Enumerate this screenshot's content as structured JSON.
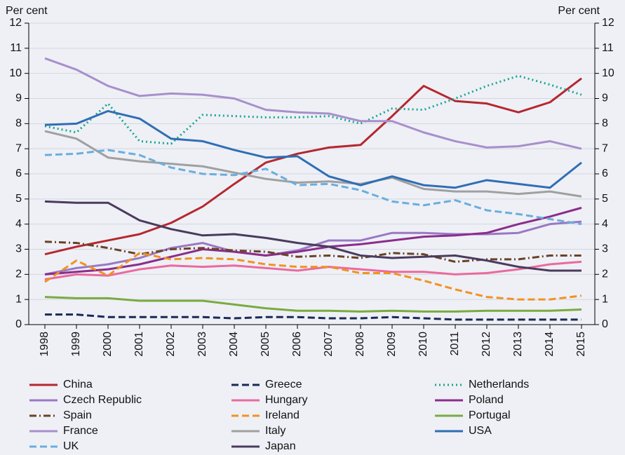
{
  "chart_data": {
    "type": "line",
    "y_label": "Per cent",
    "y2_label": "Per cent",
    "categories": [
      "1998",
      "1999",
      "2000",
      "2001",
      "2002",
      "2003",
      "2004",
      "2005",
      "2006",
      "2007",
      "2008",
      "2009",
      "2010",
      "2011",
      "2012",
      "2013",
      "2014",
      "2015"
    ],
    "ylim": [
      0,
      12
    ],
    "yticks": [
      0,
      1,
      2,
      3,
      4,
      5,
      6,
      7,
      8,
      9,
      10,
      11,
      12
    ],
    "y2lim": [
      0,
      12
    ],
    "y2ticks": [
      0,
      1,
      2,
      3,
      4,
      5,
      6,
      7,
      8,
      9,
      10,
      11,
      12
    ],
    "grid": true,
    "series": [
      {
        "name": "China",
        "color": "#b5282e",
        "style": "solid",
        "values": [
          2.8,
          3.1,
          3.35,
          3.6,
          4.05,
          4.7,
          5.6,
          6.45,
          6.8,
          7.05,
          7.15,
          8.3,
          9.5,
          8.9,
          8.8,
          8.45,
          8.85,
          9.8
        ]
      },
      {
        "name": "Greece",
        "color": "#1b2a55",
        "style": "dashed",
        "values": [
          0.4,
          0.4,
          0.3,
          0.3,
          0.3,
          0.3,
          0.25,
          0.3,
          0.3,
          0.25,
          0.25,
          0.3,
          0.25,
          0.2,
          0.2,
          0.2,
          0.2,
          0.2
        ]
      },
      {
        "name": "Netherlands",
        "color": "#1aa68e",
        "style": "dotted",
        "values": [
          7.9,
          7.65,
          8.8,
          7.3,
          7.2,
          8.35,
          8.3,
          8.25,
          8.25,
          8.3,
          8.0,
          8.6,
          8.55,
          9.0,
          9.5,
          9.9,
          9.55,
          9.15
        ]
      },
      {
        "name": "Czech Republic",
        "color": "#9a78c4",
        "style": "solid",
        "values": [
          2.0,
          2.25,
          2.4,
          2.65,
          3.05,
          3.25,
          2.9,
          2.75,
          2.95,
          3.35,
          3.35,
          3.65,
          3.65,
          3.6,
          3.6,
          3.65,
          4.0,
          4.1
        ]
      },
      {
        "name": "Hungary",
        "color": "#ea6a9e",
        "style": "solid",
        "values": [
          1.8,
          2.0,
          1.95,
          2.2,
          2.35,
          2.3,
          2.35,
          2.25,
          2.15,
          2.3,
          2.2,
          2.1,
          2.1,
          2.0,
          2.05,
          2.2,
          2.4,
          2.5
        ]
      },
      {
        "name": "Poland",
        "color": "#8b2d8c",
        "style": "solid",
        "values": [
          2.0,
          2.1,
          2.2,
          2.4,
          2.7,
          3.0,
          2.9,
          2.75,
          2.9,
          3.1,
          3.2,
          3.35,
          3.5,
          3.55,
          3.65,
          4.0,
          4.3,
          4.65
        ]
      },
      {
        "name": "Spain",
        "color": "#6b4226",
        "style": "dashdot",
        "values": [
          3.3,
          3.25,
          3.05,
          2.8,
          3.0,
          3.05,
          2.95,
          2.9,
          2.7,
          2.75,
          2.65,
          2.85,
          2.8,
          2.5,
          2.6,
          2.6,
          2.75,
          2.75
        ]
      },
      {
        "name": "Ireland",
        "color": "#f29220",
        "style": "dashed",
        "values": [
          1.7,
          2.55,
          1.95,
          2.85,
          2.6,
          2.65,
          2.6,
          2.4,
          2.3,
          2.3,
          2.05,
          2.05,
          1.75,
          1.4,
          1.1,
          1.0,
          1.0,
          1.15
        ]
      },
      {
        "name": "Portugal",
        "color": "#7aab3f",
        "style": "solid",
        "values": [
          1.1,
          1.05,
          1.05,
          0.95,
          0.95,
          0.95,
          0.8,
          0.65,
          0.55,
          0.55,
          0.52,
          0.55,
          0.52,
          0.52,
          0.55,
          0.55,
          0.55,
          0.6
        ]
      },
      {
        "name": "France",
        "color": "#a88fcb",
        "style": "solid",
        "values": [
          10.6,
          10.15,
          9.5,
          9.1,
          9.2,
          9.15,
          9.0,
          8.55,
          8.45,
          8.4,
          8.1,
          8.1,
          7.65,
          7.3,
          7.05,
          7.1,
          7.3,
          7.0
        ]
      },
      {
        "name": "Italy",
        "color": "#a0a0a0",
        "style": "solid",
        "values": [
          7.7,
          7.4,
          6.65,
          6.5,
          6.4,
          6.3,
          6.05,
          5.8,
          5.65,
          5.7,
          5.6,
          5.85,
          5.4,
          5.3,
          5.3,
          5.2,
          5.3,
          5.1
        ]
      },
      {
        "name": "USA",
        "color": "#2f6eb5",
        "style": "solid",
        "values": [
          7.95,
          8.0,
          8.5,
          8.2,
          7.4,
          7.3,
          6.95,
          6.65,
          6.7,
          5.9,
          5.55,
          5.9,
          5.55,
          5.45,
          5.75,
          5.6,
          5.45,
          6.45
        ]
      },
      {
        "name": "UK",
        "color": "#6aaede",
        "style": "dashed",
        "values": [
          6.75,
          6.8,
          6.95,
          6.75,
          6.25,
          6.0,
          5.95,
          6.2,
          5.55,
          5.6,
          5.35,
          4.9,
          4.75,
          4.95,
          4.55,
          4.4,
          4.2,
          4.0
        ]
      },
      {
        "name": "Japan",
        "color": "#4a3b5e",
        "style": "solid",
        "values": [
          4.9,
          4.85,
          4.85,
          4.15,
          3.8,
          3.55,
          3.6,
          3.45,
          3.25,
          3.1,
          2.75,
          2.65,
          2.7,
          2.75,
          2.55,
          2.3,
          2.15,
          2.15
        ]
      }
    ]
  }
}
